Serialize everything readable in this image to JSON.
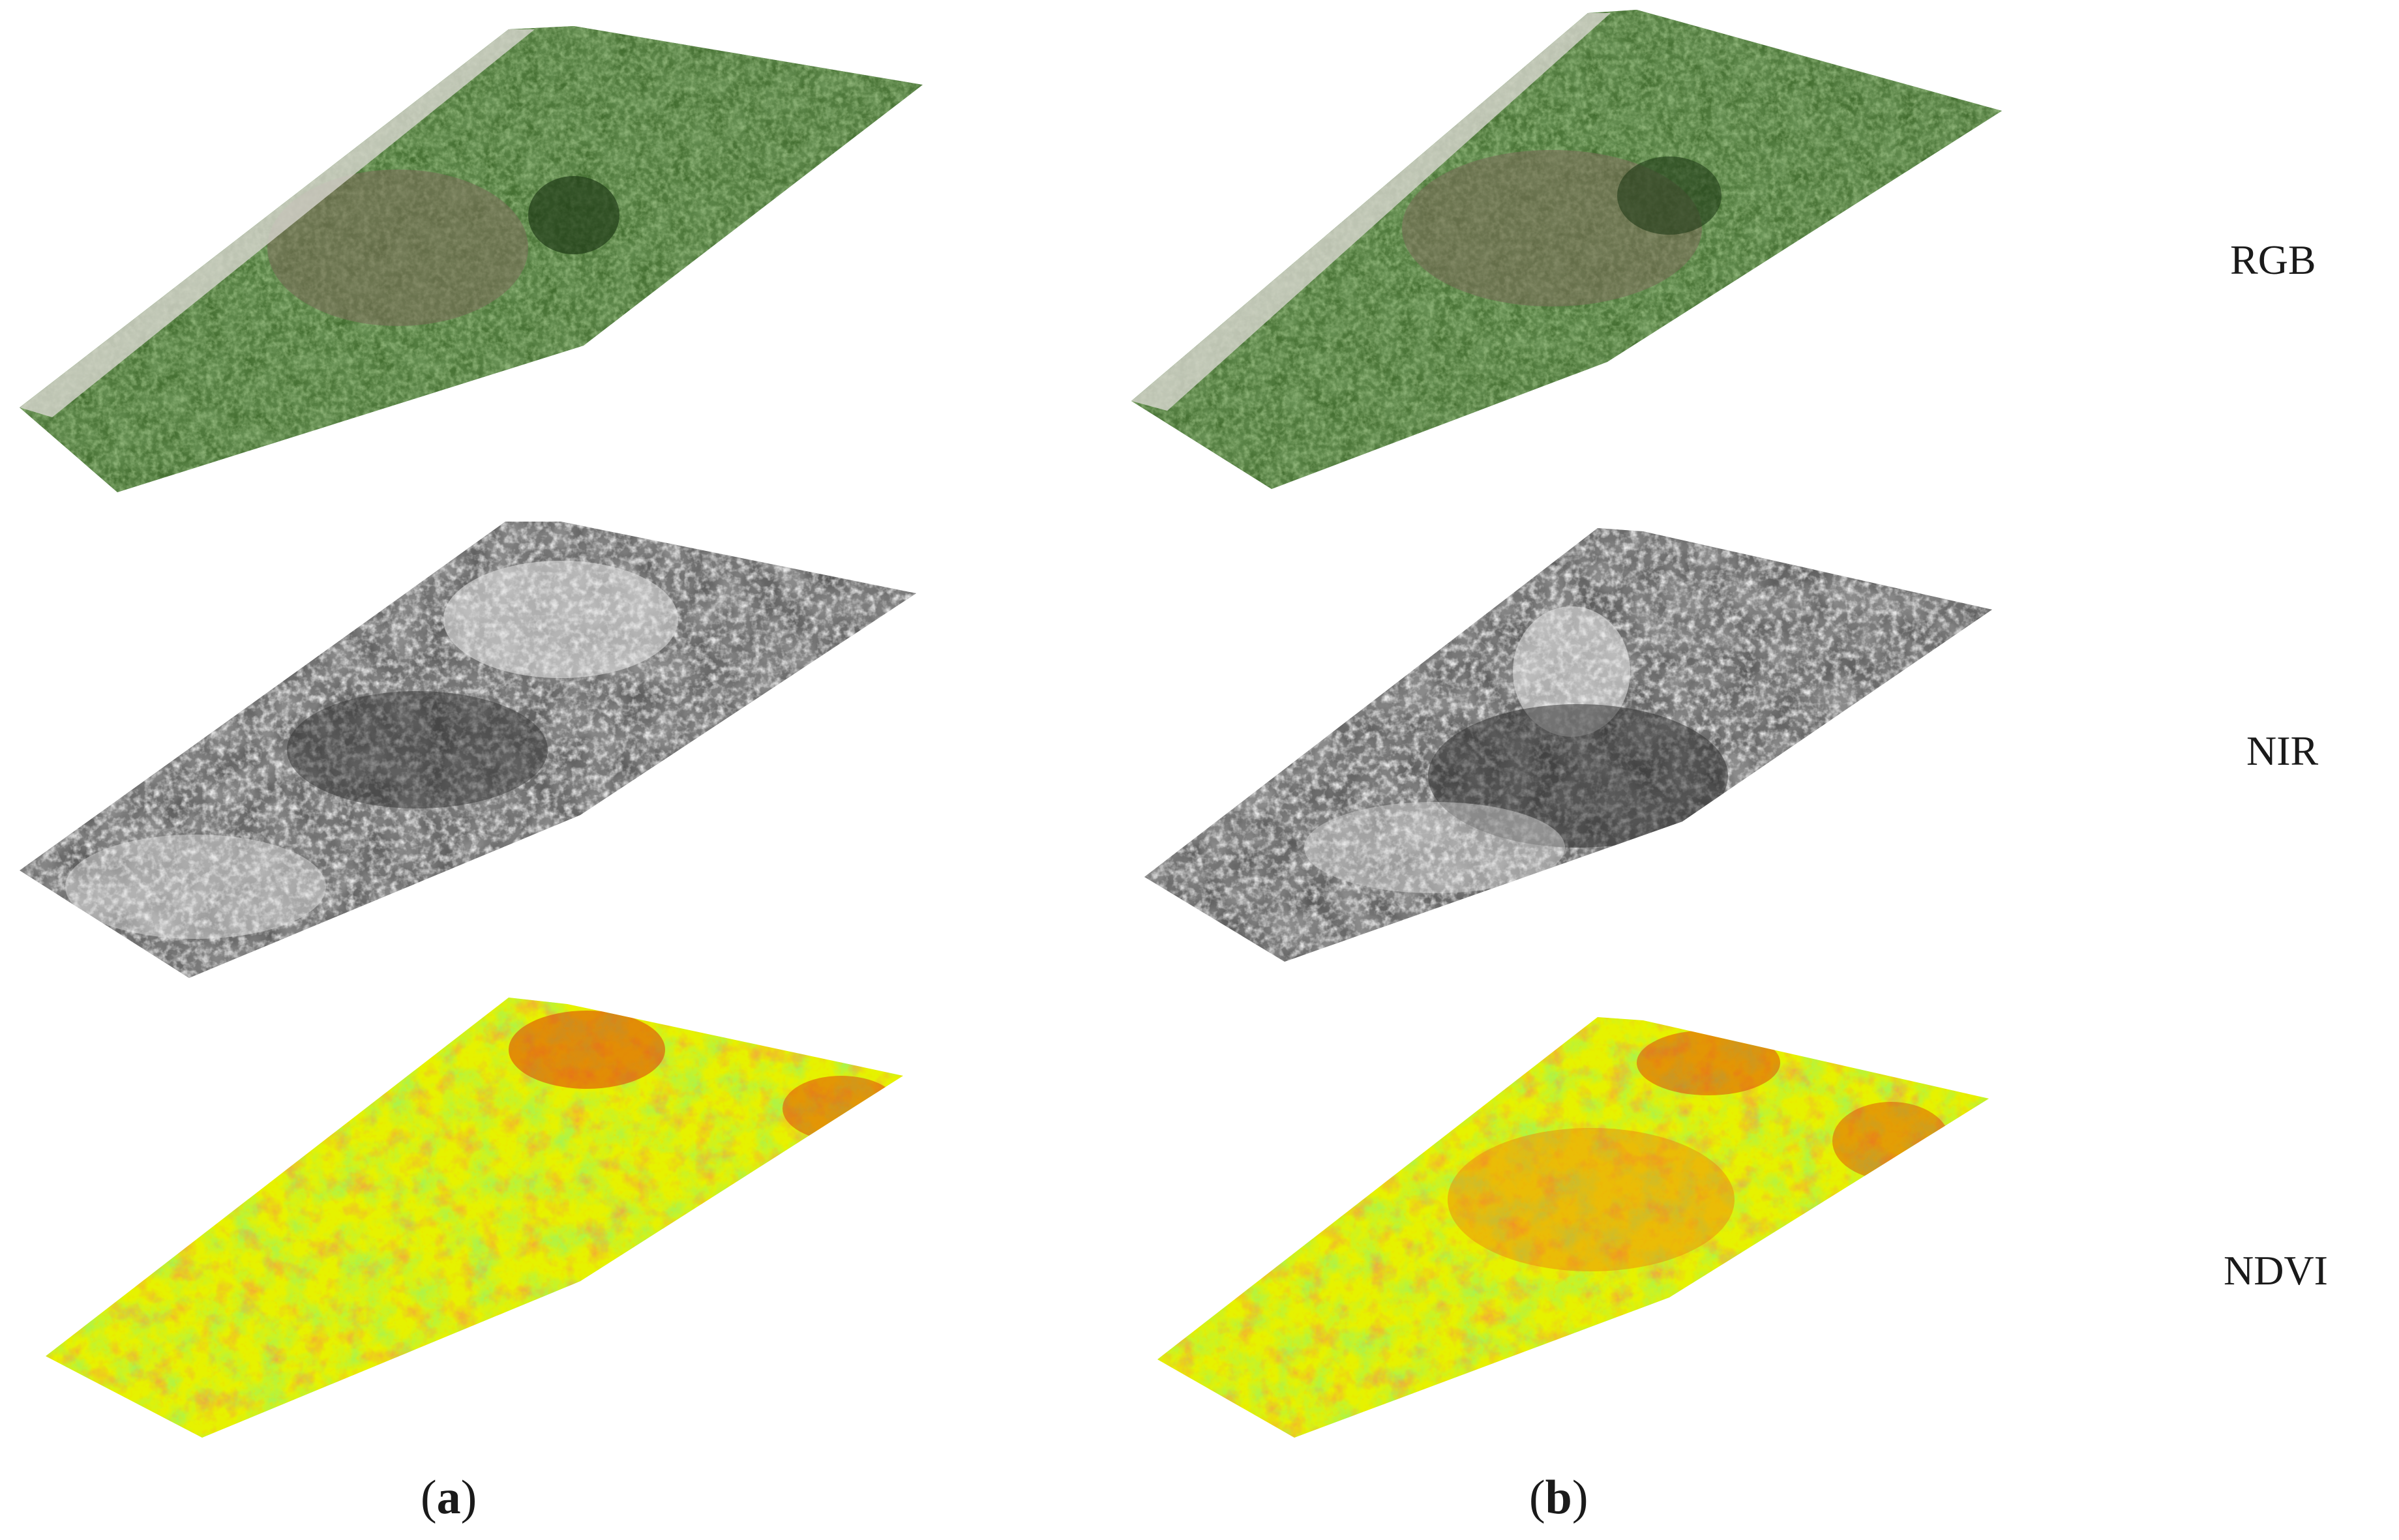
{
  "rows": [
    {
      "id": "rgb",
      "label": "RGB"
    },
    {
      "id": "nir",
      "label": "NIR"
    },
    {
      "id": "ndvi",
      "label": "NDVI"
    }
  ],
  "columns": [
    {
      "id": "a",
      "open": "(",
      "letter": "a",
      "close": ")"
    },
    {
      "id": "b",
      "open": "(",
      "letter": "b",
      "close": ")"
    }
  ],
  "colors": {
    "rgb_base": "#3f6a2c",
    "rgb_light": "#6f9a4a",
    "rgb_dark": "#1f3a17",
    "rgb_bare": "#7b6a5a",
    "nir_base": "#8a8a8a",
    "nir_light": "#e8e8e8",
    "nir_dark": "#2a2a2a",
    "ndvi_yellow": "#e6f200",
    "ndvi_green": "#59e61a",
    "ndvi_orange": "#f07a10",
    "ndvi_red": "#e04a0a"
  }
}
